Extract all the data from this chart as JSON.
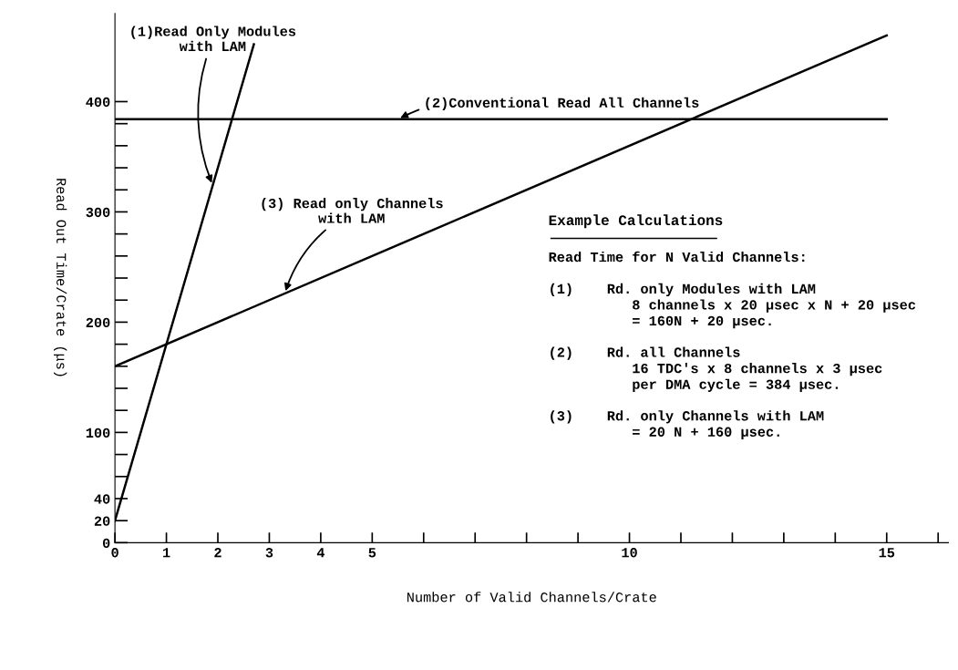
{
  "chart_data": {
    "type": "line",
    "xlabel": "Number of Valid Channels/Crate",
    "ylabel": "Read Out Time/Crate (μs)",
    "xlim": [
      0,
      16.2
    ],
    "ylim": [
      0,
      480
    ],
    "xticks": [
      0,
      1,
      2,
      3,
      4,
      5,
      {
        "value": 6,
        "label": null
      },
      {
        "value": 7,
        "label": null
      },
      {
        "value": 8,
        "label": null
      },
      {
        "value": 9,
        "label": null
      },
      10,
      {
        "value": 11,
        "label": null
      },
      {
        "value": 12,
        "label": null
      },
      {
        "value": 13,
        "label": null
      },
      {
        "value": 14,
        "label": null
      },
      15,
      {
        "value": 16,
        "label": null
      }
    ],
    "yticks": [
      0,
      20,
      40,
      {
        "value": 60,
        "label": null
      },
      {
        "value": 80,
        "label": null
      },
      100,
      {
        "value": 120,
        "label": null
      },
      {
        "value": 140,
        "label": null
      },
      {
        "value": 160,
        "label": null
      },
      {
        "value": 180,
        "label": null
      },
      200,
      {
        "value": 220,
        "label": null
      },
      {
        "value": 240,
        "label": null
      },
      {
        "value": 260,
        "label": null
      },
      {
        "value": 280,
        "label": null
      },
      300,
      {
        "value": 320,
        "label": null
      },
      {
        "value": 340,
        "label": null
      },
      {
        "value": 360,
        "label": null
      },
      {
        "value": 380,
        "label": null
      },
      400
    ],
    "series": [
      {
        "color": "#000000",
        "x": [
          0,
          2.7
        ],
        "values": [
          20,
          452
        ]
      },
      {
        "color": "#000000",
        "x": [
          0,
          15
        ],
        "values": [
          384,
          384
        ]
      },
      {
        "color": "#000000",
        "x": [
          0,
          15
        ],
        "values": [
          160,
          460
        ]
      }
    ],
    "annotations": [
      {
        "text": "(1)Read Only Modules\nwith LAM",
        "x": 1.9,
        "y": 324
      },
      {
        "text": "(2)Conventional Read All Channels",
        "x": 5.5,
        "y": 384
      },
      {
        "text": "(3) Read only Channels\nwith LAM",
        "x": 3.3,
        "y": 226
      },
      "Example Calculations",
      "Read Time for N Valid Channels:",
      "(1)    Rd. only Modules with LAM\n          8 channels x 20 μsec x N + 20 μsec\n          = 160N + 20 μsec.",
      "(2)    Rd. all Channels\n          16 TDC's x 8 channels x 3 μsec\n          per DMA cycle = 384 μsec.",
      "(3)    Rd. only Channels with LAM\n          = 20 N + 160 μsec."
    ],
    "grid": false,
    "legend": false,
    "marker": "none",
    "line_style": "solid"
  }
}
